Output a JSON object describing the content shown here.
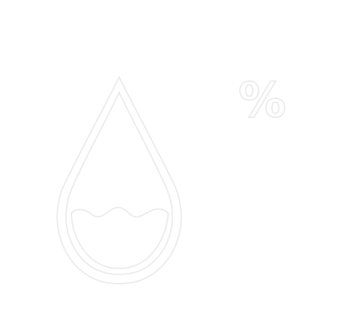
{
  "icon": {
    "name": "humidity-drop-icon",
    "symbol": "%",
    "colors": {
      "background": "#ffffff",
      "stroke": "#ececec",
      "stroke_light": "#f4f4f4"
    }
  }
}
